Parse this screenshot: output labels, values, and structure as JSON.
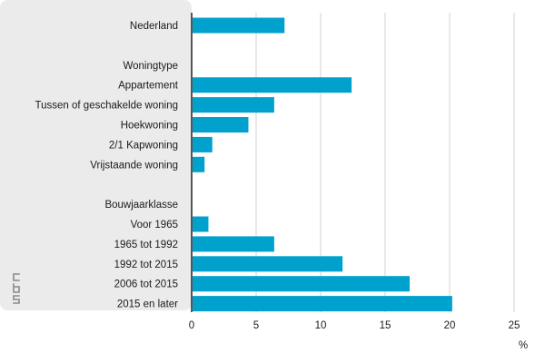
{
  "chart_data": {
    "type": "bar",
    "orientation": "horizontal",
    "categories": [
      "Nederland",
      "",
      "Woningtype",
      "Appartement",
      "Tussen of geschakelde woning",
      "Hoekwoning",
      "2/1 Kapwoning",
      "Vrijstaande woning",
      "",
      "Bouwjaarklasse",
      "Voor 1965",
      "1965 tot 1992",
      "1992 tot 2015",
      "2006 tot 2015",
      "2015 en later"
    ],
    "values": [
      7.2,
      null,
      null,
      12.4,
      6.4,
      4.4,
      1.6,
      1.0,
      null,
      null,
      1.3,
      6.4,
      11.7,
      16.9,
      20.2
    ],
    "xlim": [
      0,
      25
    ],
    "xticks": [
      "0",
      "5",
      "10",
      "15",
      "20",
      "25"
    ],
    "xlabel": "%",
    "title": "",
    "grid": "vertical",
    "bar_color": "#00a1cd",
    "label_panel_color": "#ebebeb",
    "grid_color": "#d2d2d2",
    "logo": "cbs-logo-icon",
    "logo_text": "cbs"
  }
}
